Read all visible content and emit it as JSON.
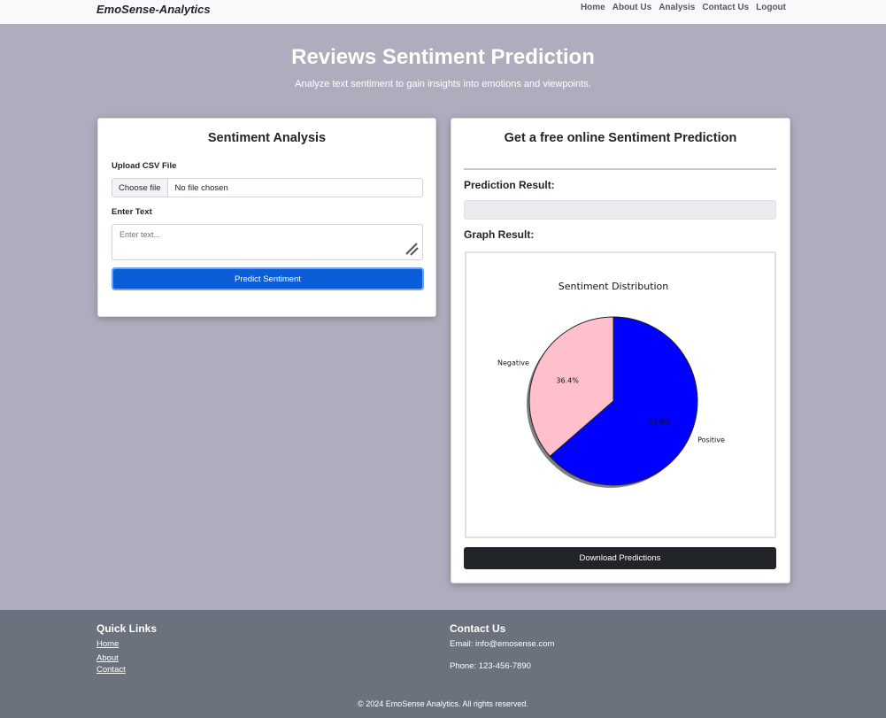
{
  "navbar": {
    "brand": "EmoSense-Analytics",
    "links": [
      "Home",
      "About Us",
      "Analysis",
      "Contact Us",
      "Logout"
    ]
  },
  "hero": {
    "title": "Reviews Sentiment Prediction",
    "subtitle": "Analyze text sentiment to gain insights into emotions and viewpoints."
  },
  "analysis_card": {
    "title": "Sentiment Analysis",
    "upload_label": "Upload CSV File",
    "file_button": "Choose file",
    "file_status": "No file chosen",
    "text_label": "Enter Text",
    "text_placeholder": "Enter text...",
    "predict_button": "Predict Sentiment"
  },
  "prediction_card": {
    "title": "Get a free online Sentiment Prediction",
    "result_label": "Prediction Result:",
    "result_value": "",
    "graph_label": "Graph Result:",
    "download_button": "Download Predictions"
  },
  "chart_data": {
    "type": "pie",
    "title": "Sentiment Distribution",
    "categories": [
      "Negative",
      "Positive"
    ],
    "values": [
      36.4,
      63.6
    ],
    "value_labels": [
      "36.4%",
      "63.6%"
    ],
    "colors": [
      "#ffc0cb",
      "#0000ff"
    ],
    "shadow": true
  },
  "footer": {
    "quick_links_heading": "Quick Links",
    "quick_links": [
      "Home",
      "About",
      "Contact"
    ],
    "contact_heading": "Contact Us",
    "email": "Email: info@emosense.com",
    "phone": "Phone: 123-456-7890",
    "copyright": "© 2024 EmoSense Analytics. All rights reserved."
  }
}
